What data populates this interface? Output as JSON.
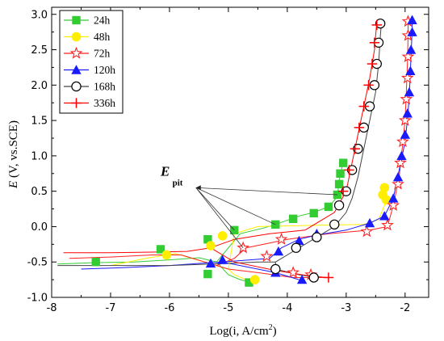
{
  "chart_data": {
    "type": "line",
    "xlabel_main": "Log(i, A/cm",
    "xlabel_sup": "2",
    "xlabel_end": ")",
    "ylabel_italic": "E",
    "ylabel_rest": " (V, vs.SCE)",
    "xlim": [
      -8,
      -1.6
    ],
    "ylim": [
      -1.0,
      3.1
    ],
    "x_ticks": [
      -8,
      -7,
      -6,
      -5,
      -4,
      -3,
      -2
    ],
    "y_ticks": [
      -1.0,
      -0.5,
      0.0,
      0.5,
      1.0,
      1.5,
      2.0,
      2.5,
      3.0
    ],
    "x_tick_labels": [
      "-8",
      "-7",
      "-6",
      "-5",
      "-4",
      "-3",
      "-2"
    ],
    "y_tick_labels": [
      "-1.0",
      "-0.5",
      "0.0",
      "0.5",
      "1.0",
      "1.5",
      "2.0",
      "2.5",
      "3.0"
    ],
    "legend_position": "top-left",
    "annotation": {
      "text": "E",
      "subscript": "pit"
    },
    "series": [
      {
        "name": "24h",
        "color": "#33cc33",
        "marker": "square",
        "cathodic": [
          [
            -7.9,
            -0.53
          ],
          [
            -7.3,
            -0.51
          ],
          [
            -6.6,
            -0.5
          ],
          [
            -6.0,
            -0.47
          ],
          [
            -5.5,
            -0.44
          ]
        ],
        "corr": [
          -5.2,
          -0.5
        ],
        "anodic": [
          [
            -4.8,
            -0.1
          ],
          [
            -4.4,
            -0.02
          ],
          [
            -4.2,
            0.03
          ],
          [
            -3.8,
            0.15
          ],
          [
            -3.55,
            0.2
          ],
          [
            -3.3,
            0.28
          ],
          [
            -3.15,
            0.42
          ],
          [
            -3.12,
            0.65
          ],
          [
            -3.05,
            0.92
          ]
        ],
        "return": [
          [
            -5.0,
            -0.68
          ],
          [
            -4.8,
            -0.75
          ],
          [
            -4.6,
            -0.79
          ]
        ],
        "markers": [
          [
            -7.25,
            -0.5
          ],
          [
            -6.15,
            -0.32
          ],
          [
            -5.35,
            -0.18
          ],
          [
            -4.9,
            -0.05
          ],
          [
            -4.2,
            0.03
          ],
          [
            -3.9,
            0.11
          ],
          [
            -3.55,
            0.19
          ],
          [
            -3.3,
            0.28
          ],
          [
            -3.15,
            0.45
          ],
          [
            -3.12,
            0.6
          ],
          [
            -3.1,
            0.75
          ],
          [
            -3.05,
            0.9
          ],
          [
            -5.35,
            -0.67
          ],
          [
            -4.65,
            -0.79
          ]
        ]
      },
      {
        "name": "48h",
        "color": "#ffee00",
        "marker": "circle",
        "cathodic": [
          [
            -7.0,
            -0.55
          ],
          [
            -6.4,
            -0.45
          ],
          [
            -5.9,
            -0.38
          ]
        ],
        "corr": [
          -5.0,
          -0.6
        ],
        "anodic": [
          [
            -4.9,
            -0.1
          ],
          [
            -4.5,
            0.0
          ],
          [
            -3.5,
            0.02
          ],
          [
            -2.7,
            0.03
          ],
          [
            -2.45,
            0.1
          ],
          [
            -2.35,
            0.3
          ],
          [
            -2.32,
            0.5
          ]
        ],
        "return": [
          [
            -4.9,
            -0.68
          ],
          [
            -4.7,
            -0.75
          ]
        ],
        "markers": [
          [
            -6.05,
            -0.4
          ],
          [
            -5.3,
            -0.27
          ],
          [
            -5.1,
            -0.13
          ],
          [
            -4.55,
            -0.75
          ],
          [
            -2.38,
            0.45
          ],
          [
            -2.35,
            0.55
          ],
          [
            -2.32,
            0.38
          ]
        ]
      },
      {
        "name": "72h",
        "color": "#ff2222",
        "marker": "star",
        "cathodic": [
          [
            -7.7,
            -0.45
          ],
          [
            -7.0,
            -0.43
          ],
          [
            -6.3,
            -0.4
          ],
          [
            -5.8,
            -0.4
          ]
        ],
        "corr": [
          -5.2,
          -0.55
        ],
        "anodic": [
          [
            -4.9,
            -0.45
          ],
          [
            -4.7,
            -0.3
          ],
          [
            -4.0,
            -0.18
          ],
          [
            -3.3,
            -0.1
          ],
          [
            -2.6,
            -0.05
          ],
          [
            -2.3,
            0.0
          ],
          [
            -2.2,
            0.3
          ],
          [
            -2.1,
            0.7
          ],
          [
            -2.05,
            1.1
          ],
          [
            -2.0,
            1.5
          ],
          [
            -1.98,
            1.9
          ],
          [
            -1.96,
            2.3
          ],
          [
            -1.95,
            2.7
          ],
          [
            -1.95,
            2.95
          ]
        ],
        "return": [
          [
            -5.0,
            -0.6
          ],
          [
            -4.5,
            -0.65
          ],
          [
            -3.9,
            -0.72
          ],
          [
            -3.3,
            -0.72
          ]
        ],
        "markers": [
          [
            -4.75,
            -0.3
          ],
          [
            -4.35,
            -0.42
          ],
          [
            -4.1,
            -0.18
          ],
          [
            -3.9,
            -0.65
          ],
          [
            -3.6,
            -0.68
          ],
          [
            -2.65,
            -0.07
          ],
          [
            -2.3,
            0.02
          ],
          [
            -2.2,
            0.3
          ],
          [
            -2.12,
            0.6
          ],
          [
            -2.08,
            0.9
          ],
          [
            -2.04,
            1.2
          ],
          [
            -2.0,
            1.5
          ],
          [
            -1.98,
            1.8
          ],
          [
            -1.96,
            2.1
          ],
          [
            -1.95,
            2.4
          ],
          [
            -1.95,
            2.7
          ],
          [
            -1.95,
            2.9
          ]
        ]
      },
      {
        "name": "120h",
        "color": "#1a1aff",
        "marker": "triangle",
        "cathodic": [
          [
            -7.5,
            -0.6
          ],
          [
            -6.8,
            -0.58
          ],
          [
            -6.0,
            -0.55
          ],
          [
            -5.5,
            -0.52
          ]
        ],
        "corr": [
          -5.1,
          -0.5
        ],
        "anodic": [
          [
            -4.3,
            -0.45
          ],
          [
            -4.1,
            -0.3
          ],
          [
            -3.8,
            -0.18
          ],
          [
            -3.5,
            -0.12
          ],
          [
            -3.0,
            -0.05
          ],
          [
            -2.6,
            0.05
          ],
          [
            -2.35,
            0.15
          ],
          [
            -2.2,
            0.4
          ],
          [
            -2.1,
            0.8
          ],
          [
            -2.0,
            1.2
          ],
          [
            -1.95,
            1.6
          ],
          [
            -1.92,
            2.0
          ],
          [
            -1.9,
            2.4
          ],
          [
            -1.88,
            2.8
          ],
          [
            -1.88,
            2.92
          ]
        ],
        "return": [
          [
            -4.5,
            -0.6
          ],
          [
            -4.2,
            -0.65
          ],
          [
            -3.8,
            -0.75
          ]
        ],
        "markers": [
          [
            -5.3,
            -0.52
          ],
          [
            -5.1,
            -0.47
          ],
          [
            -4.2,
            -0.65
          ],
          [
            -4.15,
            -0.35
          ],
          [
            -3.8,
            -0.2
          ],
          [
            -3.5,
            -0.1
          ],
          [
            -2.6,
            0.05
          ],
          [
            -2.35,
            0.15
          ],
          [
            -3.75,
            -0.75
          ],
          [
            -2.2,
            0.4
          ],
          [
            -2.12,
            0.7
          ],
          [
            -2.06,
            1.0
          ],
          [
            -2.0,
            1.3
          ],
          [
            -1.96,
            1.6
          ],
          [
            -1.93,
            1.9
          ],
          [
            -1.91,
            2.2
          ],
          [
            -1.9,
            2.5
          ],
          [
            -1.88,
            2.75
          ],
          [
            -1.88,
            2.92
          ]
        ]
      },
      {
        "name": "168h",
        "color": "#000000",
        "marker": "open-circle",
        "cathodic": [
          [
            -7.9,
            -0.55
          ],
          [
            -7.0,
            -0.55
          ],
          [
            -6.0,
            -0.55
          ],
          [
            -5.0,
            -0.52
          ],
          [
            -4.5,
            -0.5
          ]
        ],
        "corr": [
          -4.2,
          -0.5
        ],
        "anodic": [
          [
            -4.0,
            -0.4
          ],
          [
            -3.8,
            -0.3
          ],
          [
            -3.5,
            -0.15
          ],
          [
            -3.2,
            0.0
          ],
          [
            -3.0,
            0.2
          ],
          [
            -2.9,
            0.4
          ],
          [
            -2.8,
            0.7
          ],
          [
            -2.7,
            1.1
          ],
          [
            -2.6,
            1.5
          ],
          [
            -2.5,
            1.9
          ],
          [
            -2.45,
            2.3
          ],
          [
            -2.42,
            2.7
          ],
          [
            -2.4,
            2.9
          ]
        ],
        "return": [
          [
            -4.2,
            -0.6
          ],
          [
            -3.8,
            -0.68
          ],
          [
            -3.5,
            -0.72
          ]
        ],
        "markers": [
          [
            -4.2,
            -0.6
          ],
          [
            -3.85,
            -0.3
          ],
          [
            -3.5,
            -0.15
          ],
          [
            -3.55,
            -0.72
          ],
          [
            -3.2,
            0.03
          ],
          [
            -3.12,
            0.3
          ],
          [
            -3.0,
            0.5
          ],
          [
            -2.9,
            0.8
          ],
          [
            -2.8,
            1.1
          ],
          [
            -2.7,
            1.4
          ],
          [
            -2.6,
            1.7
          ],
          [
            -2.52,
            2.0
          ],
          [
            -2.48,
            2.3
          ],
          [
            -2.45,
            2.6
          ],
          [
            -2.42,
            2.87
          ]
        ]
      },
      {
        "name": "336h",
        "color": "#ff0000",
        "marker": "plus",
        "cathodic": [
          [
            -7.8,
            -0.37
          ],
          [
            -7.0,
            -0.37
          ],
          [
            -6.3,
            -0.36
          ],
          [
            -5.7,
            -0.35
          ]
        ],
        "corr": [
          -5.3,
          -0.3
        ],
        "anodic": [
          [
            -4.9,
            -0.18
          ],
          [
            -4.3,
            -0.1
          ],
          [
            -3.7,
            -0.05
          ],
          [
            -3.2,
            0.2
          ],
          [
            -3.0,
            0.5
          ],
          [
            -2.9,
            0.9
          ],
          [
            -2.8,
            1.3
          ],
          [
            -2.7,
            1.7
          ],
          [
            -2.6,
            2.1
          ],
          [
            -2.52,
            2.5
          ],
          [
            -2.48,
            2.9
          ]
        ],
        "return": [
          [
            -4.9,
            -0.5
          ],
          [
            -4.2,
            -0.62
          ],
          [
            -3.6,
            -0.7
          ],
          [
            -3.3,
            -0.72
          ]
        ],
        "markers": [
          [
            -3.3,
            -0.72
          ],
          [
            -3.05,
            0.5
          ],
          [
            -2.95,
            0.8
          ],
          [
            -2.85,
            1.1
          ],
          [
            -2.78,
            1.4
          ],
          [
            -2.7,
            1.7
          ],
          [
            -2.62,
            2.0
          ],
          [
            -2.56,
            2.3
          ],
          [
            -2.52,
            2.6
          ],
          [
            -2.48,
            2.85
          ]
        ]
      }
    ]
  }
}
